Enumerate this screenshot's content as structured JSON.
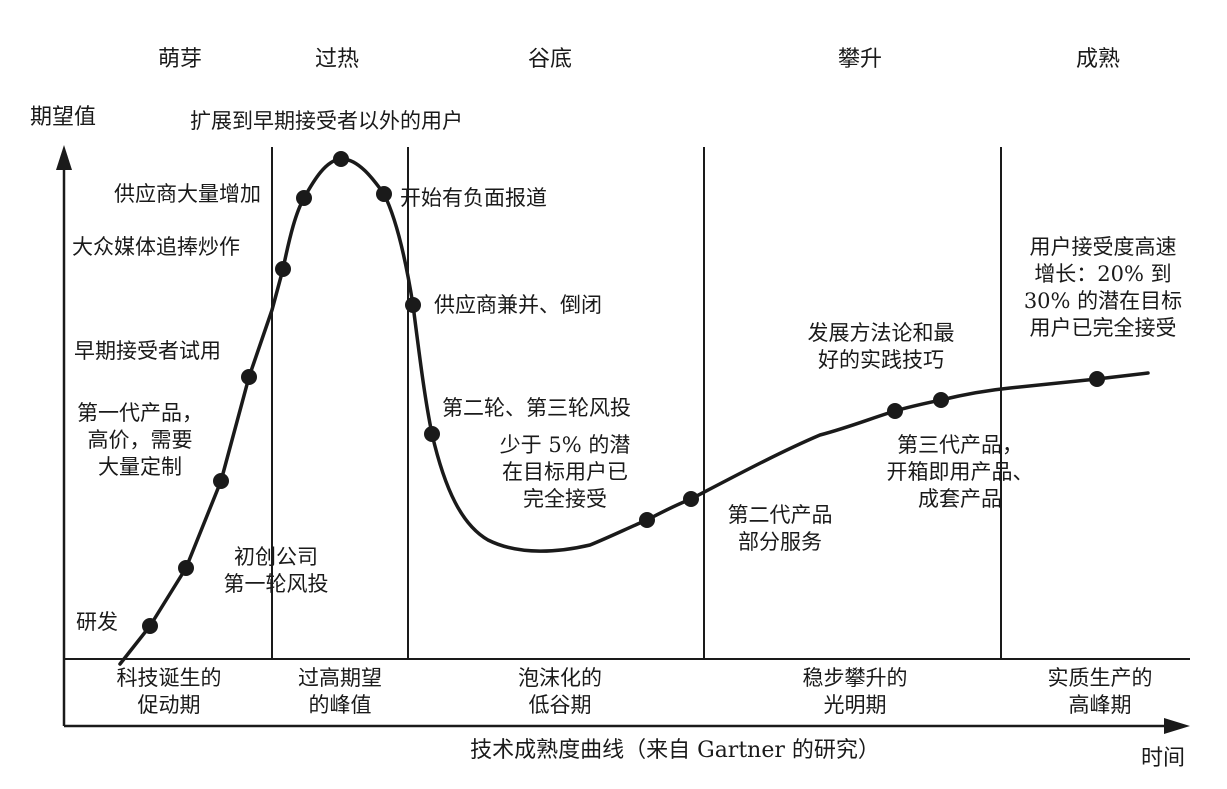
{
  "axes": {
    "y_label": "期望值",
    "x_label": "时间",
    "caption": "技术成熟度曲线（来自 Gartner 的研究）"
  },
  "phases_top": [
    "萌芽",
    "过热",
    "谷底",
    "攀升",
    "成熟"
  ],
  "phases_bottom": [
    "科技诞生的\n促动期",
    "过高期望\n的峰值",
    "泡沫化的\n低谷期",
    "稳步攀升的\n光明期",
    "实质生产的\n高峰期"
  ],
  "annotations": {
    "rd": "研发",
    "startups": "初创公司\n第一轮风投",
    "gen1": "第一代产品，\n高价，需要\n大量定制",
    "early_trial": "早期接受者试用",
    "media_hype": "大众媒体追捧炒作",
    "suppliers_increase": "供应商大量增加",
    "beyond_early": "扩展到早期接受者以外的用户",
    "negative_press": "开始有负面报道",
    "consolidation": "供应商兼并、倒闭",
    "vc_rounds": "第二轮、第三轮风投",
    "less_than_5": "少于 5% 的潜\n在目标用户已\n完全接受",
    "gen2": "第二代产品\n部分服务",
    "methodology": "发展方法论和最\n好的实践技巧",
    "gen3": "第三代产品，\n开箱即用产品、\n成套产品",
    "high_growth": "用户接受度高速\n增长：20% 到\n30% 的潜在目标\n用户已完全接受"
  },
  "colors": {
    "ink": "#1a1a1a",
    "background": "#ffffff"
  }
}
